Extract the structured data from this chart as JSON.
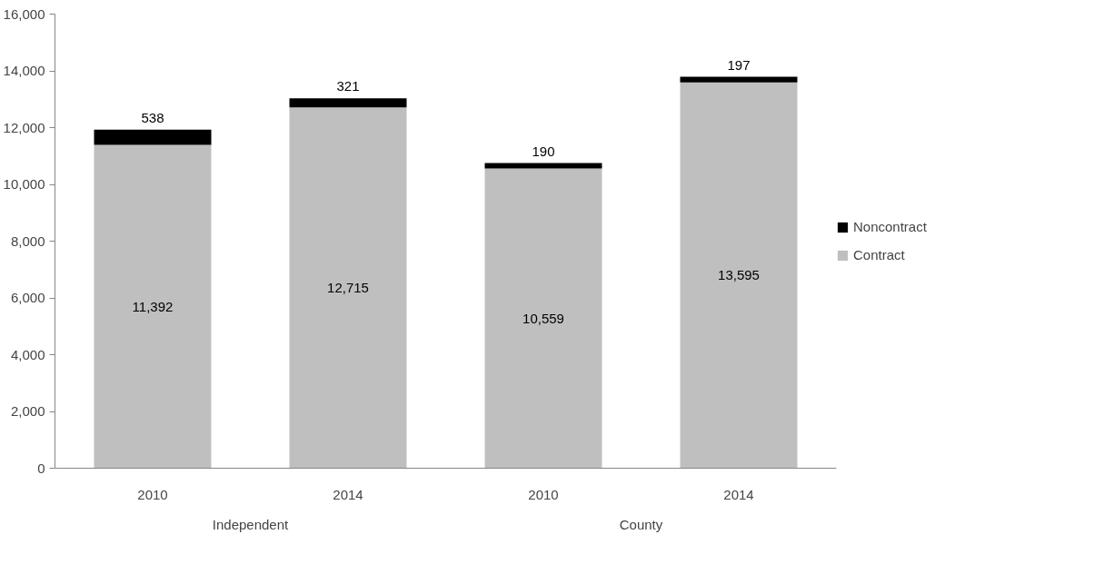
{
  "chart_data": {
    "type": "bar",
    "stacked": true,
    "categories": [
      "2010",
      "2014",
      "2010",
      "2014"
    ],
    "annotations": [
      "Independent",
      "County"
    ],
    "series": [
      {
        "name": "Contract",
        "color": "#bfbfbf",
        "values": [
          11392,
          12715,
          10559,
          13595
        ],
        "value_labels": [
          "11,392",
          "12,715",
          "10,559",
          "13,595"
        ]
      },
      {
        "name": "Noncontract",
        "color": "#000000",
        "values": [
          538,
          321,
          190,
          197
        ],
        "value_labels": [
          "538",
          "321",
          "190",
          "197"
        ]
      }
    ],
    "ylim": [
      0,
      16000
    ],
    "yticks": [
      {
        "value": 0,
        "label": "0"
      },
      {
        "value": 2000,
        "label": "2,000"
      },
      {
        "value": 4000,
        "label": "4,000"
      },
      {
        "value": 6000,
        "label": "6,000"
      },
      {
        "value": 8000,
        "label": "8,000"
      },
      {
        "value": 10000,
        "label": "10,000"
      },
      {
        "value": 12000,
        "label": "12,000"
      },
      {
        "value": 14000,
        "label": "14,000"
      },
      {
        "value": 16000,
        "label": "16,000"
      }
    ],
    "legend": "right",
    "grid": false
  }
}
